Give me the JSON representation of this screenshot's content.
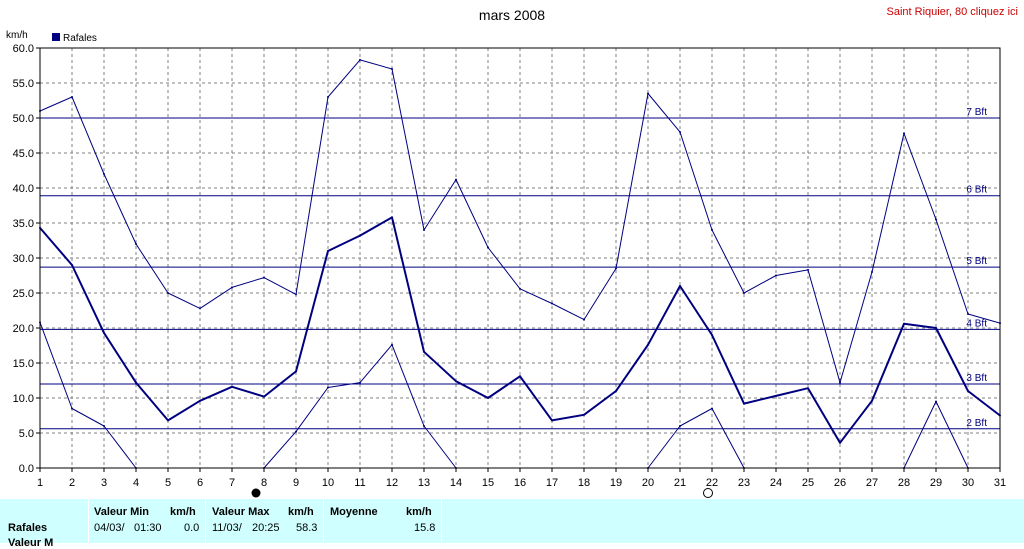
{
  "header": {
    "title": "mars 2008",
    "link_text": "Saint Riquier, 80 cliquez ici"
  },
  "chart_data": {
    "type": "line",
    "title": "mars 2008",
    "ylabel": "km/h",
    "ylim": [
      0,
      60
    ],
    "yticks": [
      "0.0",
      "5.0",
      "10.0",
      "15.0",
      "20.0",
      "25.0",
      "30.0",
      "35.0",
      "40.0",
      "45.0",
      "50.0",
      "55.0",
      "60.0"
    ],
    "x": [
      1,
      2,
      3,
      4,
      5,
      6,
      7,
      8,
      9,
      10,
      11,
      12,
      13,
      14,
      15,
      16,
      17,
      18,
      19,
      20,
      21,
      22,
      23,
      24,
      25,
      26,
      27,
      28,
      29,
      30,
      31
    ],
    "legend": [
      "Rafales"
    ],
    "legend_position": "top-left",
    "grid": true,
    "series": [
      {
        "name": "Rafales",
        "role": "mean",
        "values": [
          34.3,
          29.0,
          19.3,
          12.2,
          6.8,
          9.6,
          11.6,
          10.2,
          13.8,
          31.0,
          33.2,
          35.8,
          16.6,
          12.4,
          10.0,
          13.1,
          6.8,
          7.6,
          11.0,
          17.6,
          26.0,
          19.0,
          9.2,
          10.3,
          11.4,
          3.6,
          9.6,
          20.6,
          20.0,
          11.0,
          7.5
        ],
        "color": "#000080"
      },
      {
        "role": "max",
        "values": [
          51.0,
          53.0,
          42.0,
          32.0,
          25.0,
          22.8,
          25.8,
          27.2,
          24.8,
          53.0,
          58.3,
          57.0,
          34.0,
          41.2,
          31.5,
          25.6,
          23.5,
          21.2,
          28.5,
          53.5,
          48.0,
          34.0,
          25.0,
          27.5,
          28.3,
          12.2,
          28.0,
          47.8,
          35.5,
          22.0,
          20.7
        ],
        "color": "#000080"
      },
      {
        "role": "min",
        "values": [
          20.8,
          8.5,
          6.0,
          0.0,
          null,
          null,
          null,
          0.0,
          5.2,
          11.5,
          12.2,
          17.6,
          6.0,
          0.0,
          null,
          null,
          null,
          null,
          null,
          0.0,
          6.0,
          8.5,
          0.0,
          null,
          null,
          null,
          null,
          0.0,
          9.5,
          0.0,
          null
        ],
        "color": "#000080"
      }
    ],
    "beaufort_lines": [
      {
        "label": "2 Bft",
        "value": 5.6
      },
      {
        "label": "3 Bft",
        "value": 12.0
      },
      {
        "label": "4 Bft",
        "value": 19.8
      },
      {
        "label": "5 Bft",
        "value": 28.7
      },
      {
        "label": "6 Bft",
        "value": 38.9
      },
      {
        "label": "7 Bft",
        "value": 50.0
      }
    ],
    "moon_phases": [
      {
        "day": 8,
        "phase": "new-moon"
      },
      {
        "day": 22,
        "phase": "full-moon"
      }
    ]
  },
  "stats": {
    "row_label": "Rafales",
    "row2_label": "Valeur M",
    "min_header": "Valeur Min",
    "unit": "km/h",
    "max_header": "Valeur Max",
    "mean_header": "Moyenne",
    "min_date": "04/03/",
    "min_time": "01:30",
    "min_value": "0.0",
    "max_date": "11/03/",
    "max_time": "20:25",
    "max_value": "58.3",
    "mean_value": "15.8"
  },
  "colors": {
    "series": "#000080",
    "grid": "#808080",
    "beaufort": "#000080",
    "panel": "#d0ffff",
    "link": "#cc0000"
  }
}
